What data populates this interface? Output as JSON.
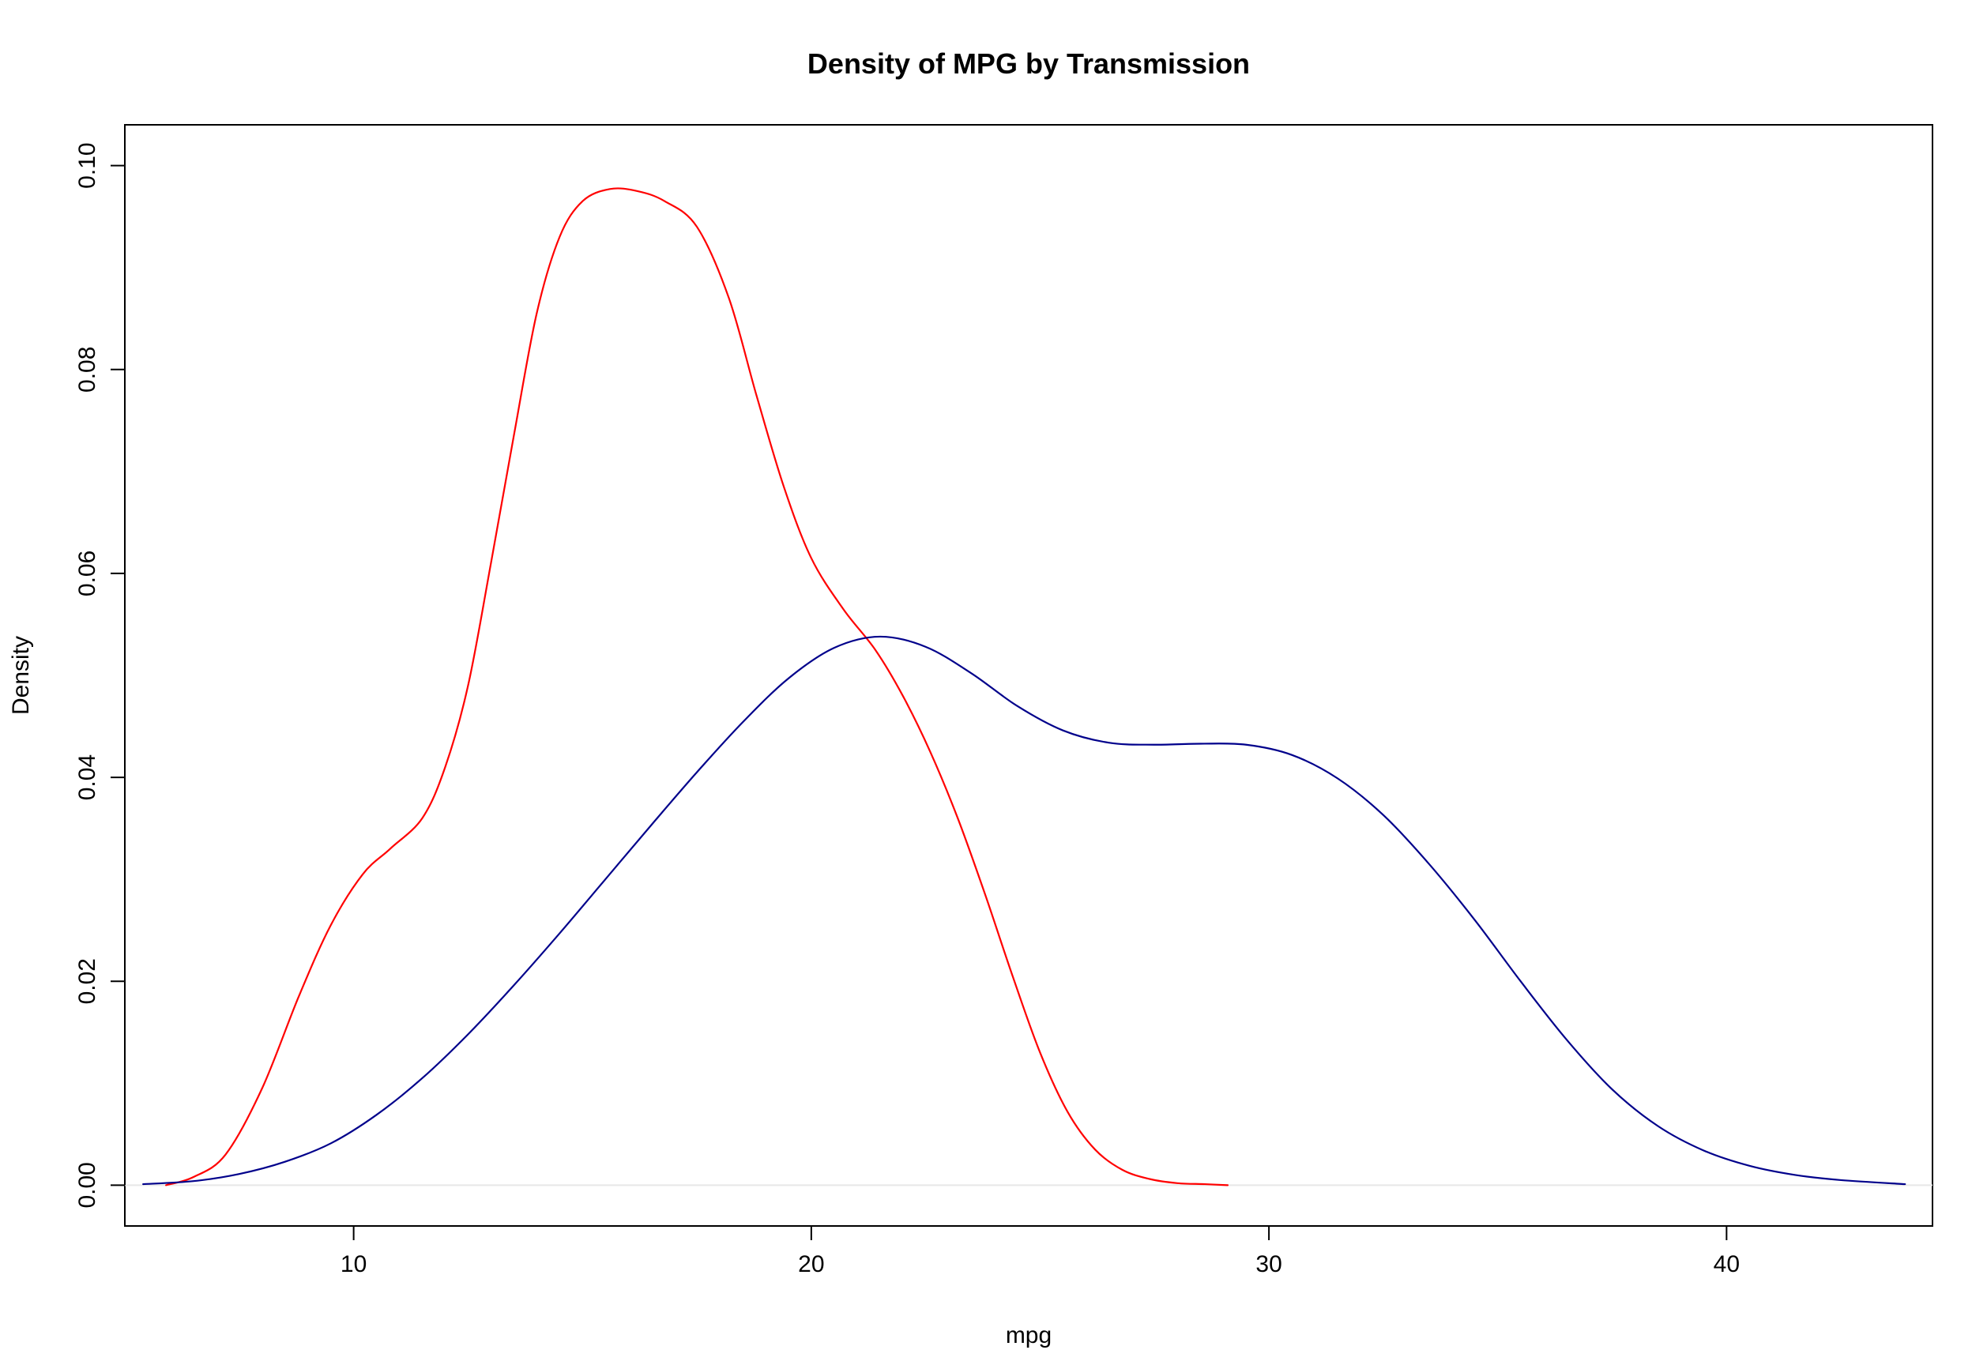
{
  "chart_data": {
    "type": "line",
    "title": "Density of MPG by Transmission",
    "xlabel": "mpg",
    "ylabel": "Density",
    "xlim": [
      5.0,
      44.5
    ],
    "ylim": [
      -0.004,
      0.104
    ],
    "grid": false,
    "x_ticks": [
      10,
      20,
      30,
      40
    ],
    "x_tick_labels": [
      "10",
      "20",
      "30",
      "40"
    ],
    "y_ticks": [
      0.0,
      0.02,
      0.04,
      0.06,
      0.08,
      0.1
    ],
    "y_tick_labels": [
      "0.00",
      "0.02",
      "0.04",
      "0.06",
      "0.08",
      "0.10"
    ],
    "baseline": {
      "y": 0,
      "color": "#e8e8e8"
    },
    "series": [
      {
        "color": "#ff0000",
        "x": [
          5.9,
          6.5,
          7.2,
          8.0,
          8.8,
          9.5,
          10.2,
          10.8,
          11.5,
          12.0,
          12.5,
          13.0,
          13.5,
          14.0,
          14.5,
          15.0,
          15.6,
          16.2,
          16.8,
          17.5,
          18.2,
          18.8,
          19.4,
          20.0,
          20.7,
          21.4,
          22.0,
          22.6,
          23.2,
          23.8,
          24.4,
          25.0,
          25.6,
          26.2,
          26.8,
          27.4,
          28.0,
          28.6,
          29.1
        ],
        "y": [
          0.0,
          0.0008,
          0.003,
          0.0095,
          0.0185,
          0.0255,
          0.0305,
          0.033,
          0.036,
          0.041,
          0.049,
          0.061,
          0.0735,
          0.0855,
          0.093,
          0.0965,
          0.0977,
          0.0975,
          0.0965,
          0.094,
          0.087,
          0.0775,
          0.0685,
          0.0615,
          0.0565,
          0.0525,
          0.048,
          0.0425,
          0.036,
          0.0285,
          0.0205,
          0.013,
          0.0072,
          0.0035,
          0.0015,
          0.0006,
          0.0002,
          0.0001,
          0.0
        ]
      },
      {
        "color": "#00008b",
        "x": [
          5.4,
          6.5,
          7.5,
          8.5,
          9.5,
          10.5,
          11.5,
          12.5,
          13.5,
          14.5,
          15.5,
          16.5,
          17.5,
          18.5,
          19.5,
          20.5,
          21.5,
          22.5,
          23.5,
          24.5,
          25.5,
          26.5,
          27.5,
          28.5,
          29.5,
          30.5,
          31.5,
          32.5,
          33.5,
          34.5,
          35.5,
          36.5,
          37.5,
          38.5,
          39.5,
          40.5,
          41.5,
          42.5,
          43.9
        ],
        "y": [
          0.0001,
          0.0004,
          0.0011,
          0.0023,
          0.0041,
          0.0069,
          0.0105,
          0.0148,
          0.0196,
          0.0247,
          0.03,
          0.0353,
          0.0405,
          0.0454,
          0.0497,
          0.0527,
          0.0538,
          0.0528,
          0.0502,
          0.047,
          0.0446,
          0.0434,
          0.0432,
          0.0433,
          0.0432,
          0.0422,
          0.0399,
          0.0363,
          0.0315,
          0.026,
          0.02,
          0.0143,
          0.0094,
          0.0058,
          0.0034,
          0.0019,
          0.001,
          0.0005,
          0.0001
        ]
      }
    ]
  }
}
